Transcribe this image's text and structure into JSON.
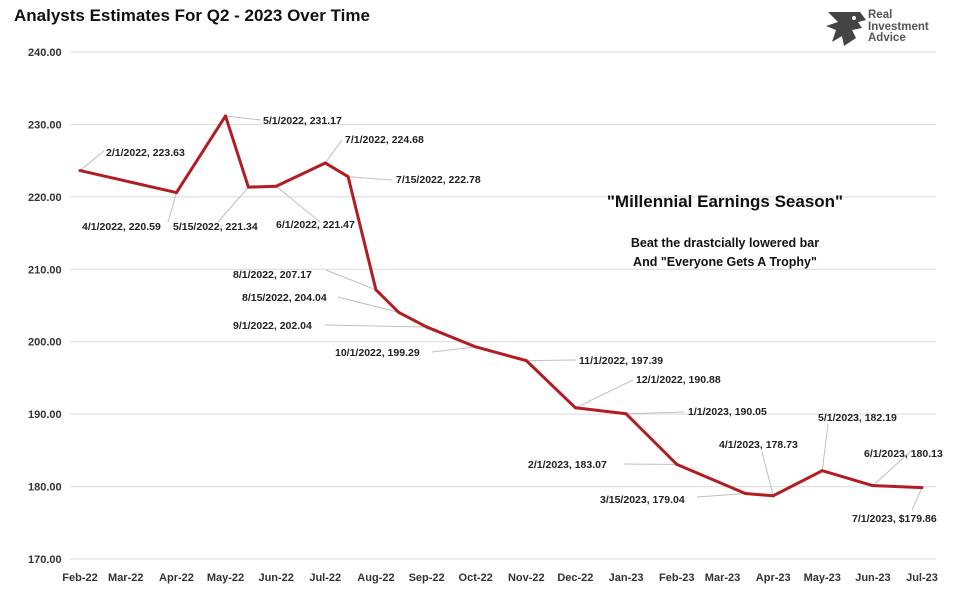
{
  "chart_data": {
    "type": "line",
    "title": "Analysts Estimates For Q2 - 2023 Over Time",
    "xlabel": "",
    "ylabel": "",
    "ylim": [
      170,
      240
    ],
    "y_ticks": [
      "170.00",
      "180.00",
      "190.00",
      "200.00",
      "210.00",
      "220.00",
      "230.00",
      "240.00"
    ],
    "y_tick_values": [
      170,
      180,
      190,
      200,
      210,
      220,
      230,
      240
    ],
    "x_tick_labels": [
      "Feb-22",
      "Mar-22",
      "Apr-22",
      "May-22",
      "Jun-22",
      "Jul-22",
      "Aug-22",
      "Sep-22",
      "Oct-22",
      "Nov-22",
      "Dec-22",
      "Jan-23",
      "Feb-23",
      "Mar-23",
      "Apr-23",
      "May-23",
      "Jun-23",
      "Jul-23"
    ],
    "x_tick_dates": [
      "2022-02-01",
      "2022-03-01",
      "2022-04-01",
      "2022-05-01",
      "2022-06-01",
      "2022-07-01",
      "2022-08-01",
      "2022-09-01",
      "2022-10-01",
      "2022-11-01",
      "2022-12-01",
      "2023-01-01",
      "2023-02-01",
      "2023-03-01",
      "2023-04-01",
      "2023-05-01",
      "2023-06-01",
      "2023-07-01"
    ],
    "grid": true,
    "line_color": "#B01E23",
    "points": [
      {
        "x": "2022-02-01",
        "y": 223.63,
        "label": "2/1/2022,  223.63"
      },
      {
        "x": "2022-04-01",
        "y": 220.59,
        "label": "4/1/2022,  220.59"
      },
      {
        "x": "2022-05-01",
        "y": 231.17,
        "label": "5/1/2022,  231.17"
      },
      {
        "x": "2022-05-15",
        "y": 221.34,
        "label": "5/15/2022,  221.34"
      },
      {
        "x": "2022-06-01",
        "y": 221.47,
        "label": "6/1/2022,  221.47"
      },
      {
        "x": "2022-07-01",
        "y": 224.68,
        "label": "7/1/2022,  224.68"
      },
      {
        "x": "2022-07-15",
        "y": 222.78,
        "label": "7/15/2022,  222.78"
      },
      {
        "x": "2022-08-01",
        "y": 207.17,
        "label": "8/1/2022,  207.17"
      },
      {
        "x": "2022-08-15",
        "y": 204.04,
        "label": "8/15/2022,  204.04"
      },
      {
        "x": "2022-09-01",
        "y": 202.04,
        "label": "9/1/2022,  202.04"
      },
      {
        "x": "2022-10-01",
        "y": 199.29,
        "label": "10/1/2022,  199.29"
      },
      {
        "x": "2022-11-01",
        "y": 197.39,
        "label": "11/1/2022,  197.39"
      },
      {
        "x": "2022-12-01",
        "y": 190.88,
        "label": "12/1/2022,  190.88"
      },
      {
        "x": "2023-01-01",
        "y": 190.05,
        "label": "1/1/2023,  190.05"
      },
      {
        "x": "2023-02-01",
        "y": 183.07,
        "label": "2/1/2023,  183.07"
      },
      {
        "x": "2023-03-15",
        "y": 179.04,
        "label": "3/15/2023,  179.04"
      },
      {
        "x": "2023-04-01",
        "y": 178.73,
        "label": "4/1/2023,  178.73"
      },
      {
        "x": "2023-05-01",
        "y": 182.19,
        "label": "5/1/2023,  182.19"
      },
      {
        "x": "2023-06-01",
        "y": 180.13,
        "label": "6/1/2023,  180.13"
      },
      {
        "x": "2023-07-01",
        "y": 179.86,
        "label": "7/1/2023,  $179.86"
      }
    ]
  },
  "annotation": {
    "headline": "\"Millennial Earnings Season\"",
    "line1": "Beat the drastcially lowered bar",
    "line2": "And \"Everyone Gets A Trophy\""
  },
  "logo": {
    "line1": "Real",
    "line2": "Investment",
    "line3": "Advice",
    "icon": "eagle-head-icon"
  }
}
